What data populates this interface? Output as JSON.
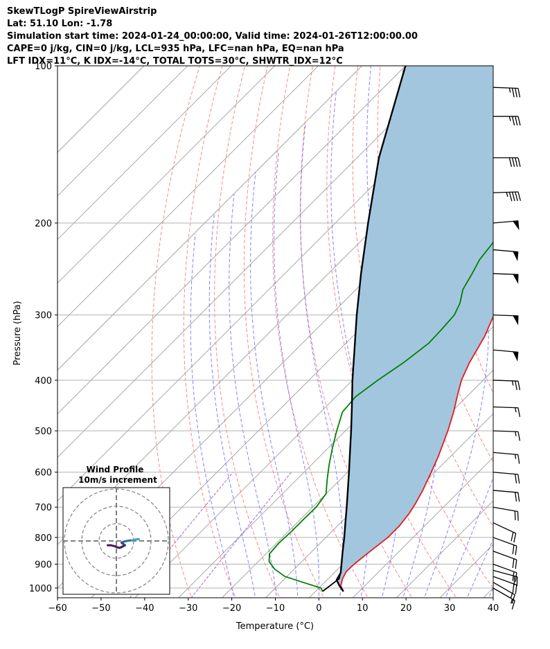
{
  "header": {
    "line1": "SkewTLogP SpireViewAirstrip",
    "line2": "Lat: 51.10   Lon: -1.78",
    "line3": "Simulation start time: 2024-01-24_00:00:00, Valid time: 2024-01-26T12:00:00.00",
    "line4": "CAPE=0 j/kg, CIN=0 j/kg, LCL=935 hPa, LFC=nan hPa, EQ=nan hPa",
    "line5": "LFT IDX=11°C, K IDX=-14°C, TOTAL TOTS=30°C, SHWTR_IDX=12°C"
  },
  "chart_data": {
    "type": "line",
    "xlabel": "Temperature (°C)",
    "ylabel": "Pressure (hPa)",
    "xlim": [
      -60,
      40
    ],
    "ylim": [
      1050,
      100
    ],
    "y_scale": "log",
    "skew": true,
    "grid": true,
    "x_ticks": [
      -60,
      -50,
      -40,
      -30,
      -20,
      -10,
      0,
      10,
      20,
      30,
      40
    ],
    "x_tick_labels": [
      "−60",
      "−50",
      "−40",
      "−30",
      "−20",
      "−10",
      "0",
      "10",
      "20",
      "30",
      "40"
    ],
    "y_ticks": [
      1000,
      900,
      800,
      700,
      600,
      500,
      400,
      300,
      200,
      100
    ],
    "y_tick_labels": [
      "1000",
      "900",
      "800",
      "700",
      "600",
      "500",
      "400",
      "300",
      "200",
      "100"
    ],
    "series": [
      {
        "role": "temperature",
        "color": "#e41a1c",
        "points": [
          [
            1015,
            6.4
          ],
          [
            990,
            4.5
          ],
          [
            960,
            3.3
          ],
          [
            930,
            2.5
          ],
          [
            900,
            2.6
          ],
          [
            870,
            3.0
          ],
          [
            840,
            3.5
          ],
          [
            800,
            4.2
          ],
          [
            760,
            4.2
          ],
          [
            720,
            3.6
          ],
          [
            690,
            2.8
          ],
          [
            650,
            1.4
          ],
          [
            600,
            -0.8
          ],
          [
            560,
            -2.8
          ],
          [
            500,
            -6.5
          ],
          [
            460,
            -9.5
          ],
          [
            430,
            -12.2
          ],
          [
            400,
            -15.0
          ],
          [
            370,
            -17.2
          ],
          [
            330,
            -19.7
          ],
          [
            300,
            -22.5
          ],
          [
            280,
            -25.5
          ],
          [
            260,
            -28.8
          ],
          [
            245,
            -31.7
          ],
          [
            232,
            -32.5
          ],
          [
            220,
            -32.4
          ],
          [
            205,
            -32.0
          ],
          [
            192,
            -32.5
          ],
          [
            180,
            -33.0
          ],
          [
            170,
            -32.3
          ],
          [
            160,
            -30.3
          ],
          [
            150,
            -27.8
          ],
          [
            140,
            -25.5
          ],
          [
            130,
            -24.0
          ],
          [
            120,
            -22.8
          ],
          [
            110,
            -22.5
          ],
          [
            105,
            -23.0
          ],
          [
            100,
            -23.5
          ]
        ]
      },
      {
        "role": "dewpoint",
        "color": "#008000",
        "points": [
          [
            1015,
            1.6
          ],
          [
            1000,
            0.5
          ],
          [
            975,
            -5.0
          ],
          [
            950,
            -10.5
          ],
          [
            920,
            -14.5
          ],
          [
            890,
            -17.5
          ],
          [
            860,
            -19.2
          ],
          [
            820,
            -19.5
          ],
          [
            780,
            -19.3
          ],
          [
            740,
            -19.3
          ],
          [
            700,
            -19.2
          ],
          [
            660,
            -20.0
          ],
          [
            620,
            -23.0
          ],
          [
            580,
            -26.0
          ],
          [
            540,
            -29.0
          ],
          [
            500,
            -32.0
          ],
          [
            460,
            -35.0
          ],
          [
            430,
            -35.5
          ],
          [
            400,
            -34.2
          ],
          [
            370,
            -32.3
          ],
          [
            340,
            -31.0
          ],
          [
            320,
            -31.2
          ],
          [
            300,
            -31.6
          ],
          [
            285,
            -33.0
          ],
          [
            268,
            -35.5
          ],
          [
            250,
            -37.0
          ],
          [
            235,
            -38.5
          ],
          [
            220,
            -39.2
          ],
          [
            205,
            -40.5
          ],
          [
            190,
            -41.4
          ],
          [
            175,
            -42.8
          ],
          [
            165,
            -44.3
          ],
          [
            155,
            -45.3
          ],
          [
            145,
            -45.0
          ],
          [
            135,
            -43.8
          ],
          [
            125,
            -42.0
          ],
          [
            115,
            -40.5
          ],
          [
            100,
            -39.0
          ]
        ]
      },
      {
        "role": "parcel_profile",
        "color": "#000000",
        "points": [
          [
            1015,
            6.4
          ],
          [
            990,
            4.2
          ],
          [
            965,
            2.2
          ],
          [
            935,
            1.5
          ],
          [
            900,
            -0.3
          ],
          [
            850,
            -3.0
          ],
          [
            800,
            -5.8
          ],
          [
            750,
            -8.9
          ],
          [
            700,
            -12.2
          ],
          [
            650,
            -15.8
          ],
          [
            600,
            -19.7
          ],
          [
            550,
            -24.0
          ],
          [
            500,
            -28.7
          ],
          [
            450,
            -34.0
          ],
          [
            400,
            -40.0
          ],
          [
            350,
            -46.5
          ],
          [
            300,
            -54.0
          ],
          [
            250,
            -62.5
          ],
          [
            200,
            -72.5
          ],
          [
            150,
            -85.0
          ],
          [
            100,
            -100.0
          ]
        ]
      },
      {
        "role": "dewpoint_surface_segment",
        "color": "#000000",
        "points": [
          [
            1015,
            1.6
          ],
          [
            960,
            2.5
          ],
          [
            935,
            1.5
          ]
        ]
      }
    ],
    "shaded_region": {
      "between": [
        "temperature",
        "parcel_profile"
      ],
      "color": "#a3c6df"
    },
    "reference_lines": {
      "isotherms_color": "#808080",
      "dry_adiabats_color": "#ff6666",
      "moist_adiabats_color": "#5555ff",
      "mixing_ratio_color": "#a05ac8"
    },
    "wind_barbs": [
      {
        "p": 1000,
        "spd_kt": 15,
        "dir_deg": 300
      },
      {
        "p": 975,
        "spd_kt": 15,
        "dir_deg": 300
      },
      {
        "p": 950,
        "spd_kt": 20,
        "dir_deg": 290
      },
      {
        "p": 925,
        "spd_kt": 20,
        "dir_deg": 285
      },
      {
        "p": 900,
        "spd_kt": 20,
        "dir_deg": 290
      },
      {
        "p": 850,
        "spd_kt": 20,
        "dir_deg": 290
      },
      {
        "p": 800,
        "spd_kt": 20,
        "dir_deg": 290
      },
      {
        "p": 750,
        "spd_kt": 20,
        "dir_deg": 295
      },
      {
        "p": 700,
        "spd_kt": 20,
        "dir_deg": 280
      },
      {
        "p": 650,
        "spd_kt": 20,
        "dir_deg": 275
      },
      {
        "p": 600,
        "spd_kt": 20,
        "dir_deg": 275
      },
      {
        "p": 550,
        "spd_kt": 15,
        "dir_deg": 275
      },
      {
        "p": 500,
        "spd_kt": 15,
        "dir_deg": 272
      },
      {
        "p": 450,
        "spd_kt": 15,
        "dir_deg": 272
      },
      {
        "p": 400,
        "spd_kt": 25,
        "dir_deg": 272
      },
      {
        "p": 350,
        "spd_kt": 50,
        "dir_deg": 275
      },
      {
        "p": 300,
        "spd_kt": 50,
        "dir_deg": 272
      },
      {
        "p": 250,
        "spd_kt": 50,
        "dir_deg": 272
      },
      {
        "p": 225,
        "spd_kt": 50,
        "dir_deg": 275
      },
      {
        "p": 200,
        "spd_kt": 50,
        "dir_deg": 265
      },
      {
        "p": 175,
        "spd_kt": 45,
        "dir_deg": 268
      },
      {
        "p": 150,
        "spd_kt": 40,
        "dir_deg": 270
      },
      {
        "p": 125,
        "spd_kt": 35,
        "dir_deg": 270
      },
      {
        "p": 110,
        "spd_kt": 35,
        "dir_deg": 272
      }
    ],
    "inset": {
      "title_line1": "Wind Profile",
      "title_line2": "10m/s increment",
      "rings_ms": [
        10,
        20,
        30
      ],
      "hodograph_uv": [
        [
          13,
          1.0
        ],
        [
          12,
          1.0
        ],
        [
          10,
          0.5
        ],
        [
          8,
          0.3
        ],
        [
          6,
          0.0
        ],
        [
          4,
          -0.5
        ],
        [
          3,
          -1.0
        ],
        [
          4,
          -1.8
        ],
        [
          5,
          -2.5
        ],
        [
          4,
          -3.0
        ],
        [
          3,
          -3.5
        ],
        [
          2,
          -4.0
        ],
        [
          1,
          -3.8
        ],
        [
          0,
          -3.5
        ],
        [
          -1,
          -3.0
        ],
        [
          -2,
          -2.8
        ],
        [
          -3,
          -2.5
        ],
        [
          -4,
          -2.5
        ],
        [
          -5,
          -2.5
        ]
      ]
    }
  }
}
